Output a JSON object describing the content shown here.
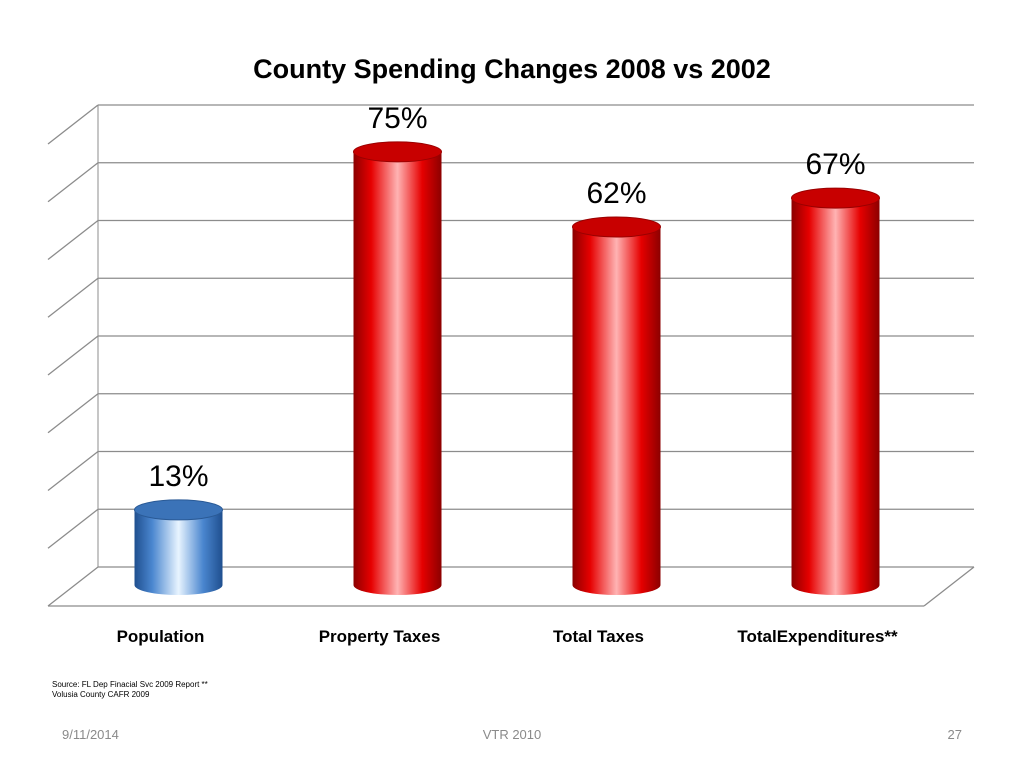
{
  "chart_data": {
    "type": "bar",
    "title": "County Spending Changes 2008 vs 2002",
    "categories": [
      "Population",
      "Property Taxes",
      "Total Taxes",
      "TotalExpenditures**"
    ],
    "values": [
      13,
      75,
      62,
      67
    ],
    "value_labels": [
      "13%",
      "75%",
      "62%",
      "67%"
    ],
    "colors": [
      "#4a86cf",
      "#e00000",
      "#e00000",
      "#e00000"
    ],
    "ylim": [
      0,
      80
    ],
    "grid": true,
    "axis_tick_labels_shown": false
  },
  "source_note": {
    "line1": "Source: FL Dep Finacial Svc 2009 Report **",
    "line2": "Volusia County CAFR 2009"
  },
  "footer": {
    "date": "9/11/2014",
    "center": "VTR 2010",
    "page": "27"
  }
}
